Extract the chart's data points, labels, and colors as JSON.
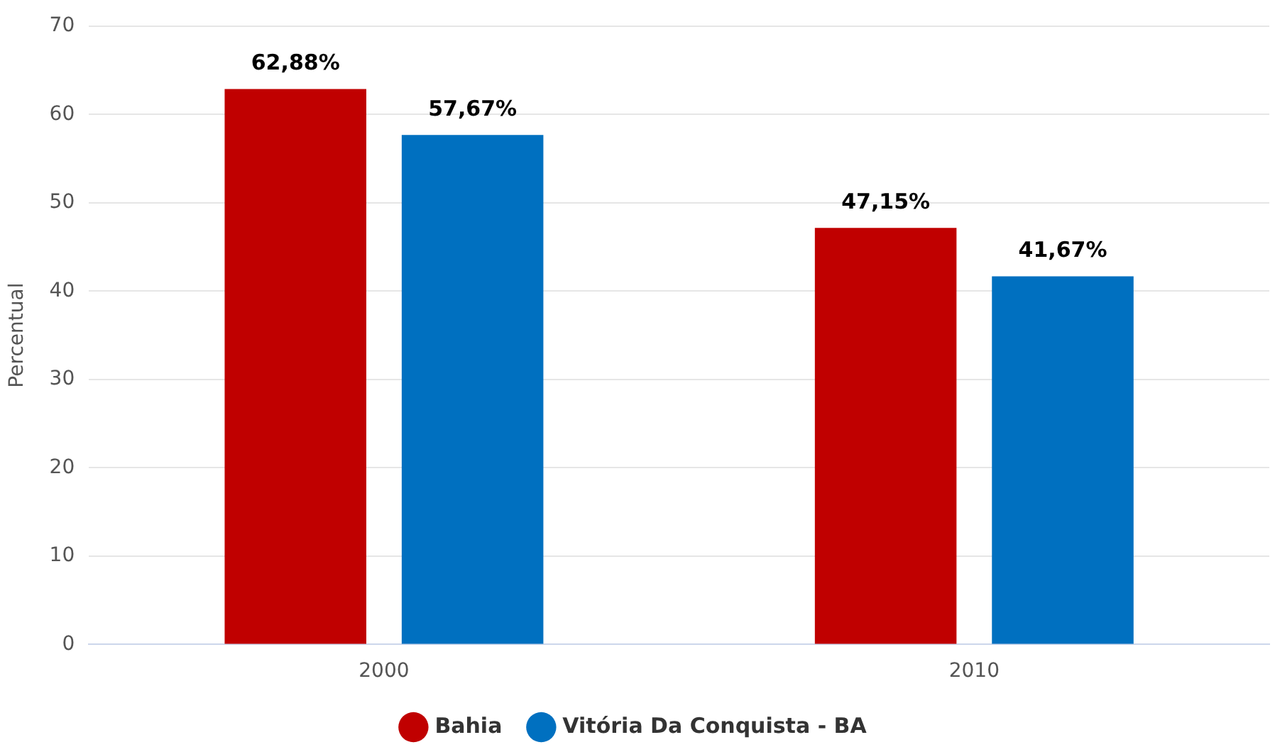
{
  "chart_data": {
    "type": "bar",
    "ylabel": "Percentual",
    "categories": [
      "2000",
      "2010"
    ],
    "series": [
      {
        "name": "Bahia",
        "color": "#c00000",
        "values": [
          62.88,
          47.15
        ],
        "value_labels": [
          "62,88%",
          "47,15%"
        ]
      },
      {
        "name": "Vitória Da Conquista - BA",
        "color": "#0070c0",
        "values": [
          57.67,
          41.67
        ],
        "value_labels": [
          "57,67%",
          "41,67%"
        ]
      }
    ],
    "ylim": [
      0,
      70
    ],
    "yticks": [
      0,
      10,
      20,
      30,
      40,
      50,
      60,
      70
    ],
    "grid": "y",
    "legend": "bottom"
  }
}
